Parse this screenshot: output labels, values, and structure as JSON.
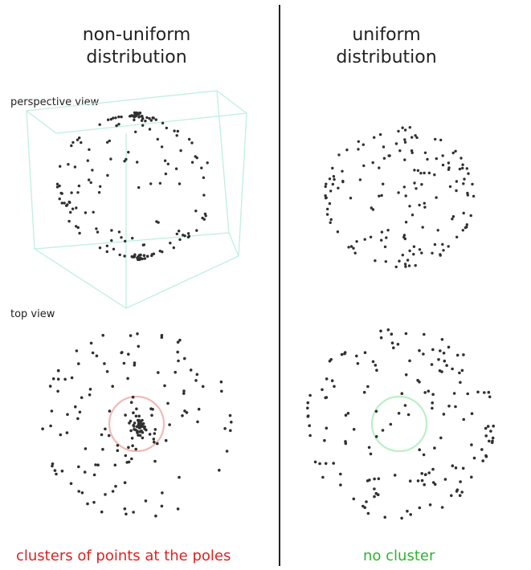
{
  "columns": {
    "left": {
      "title": "non-uniform\ndistribution",
      "perspective_label": "perspective view",
      "top_label": "top view",
      "caption": "clusters of points at the poles"
    },
    "right": {
      "title": "uniform\ndistribution",
      "caption": "no cluster"
    }
  },
  "colors": {
    "points": "#303030",
    "cube_edges": "#bfeee3",
    "highlight_nonuniform": "#f1b9b9",
    "highlight_uniform": "#baf0c6",
    "divider": "#222222",
    "caption_nonuniform": "#e21f1f",
    "caption_uniform": "#2db52d"
  }
}
